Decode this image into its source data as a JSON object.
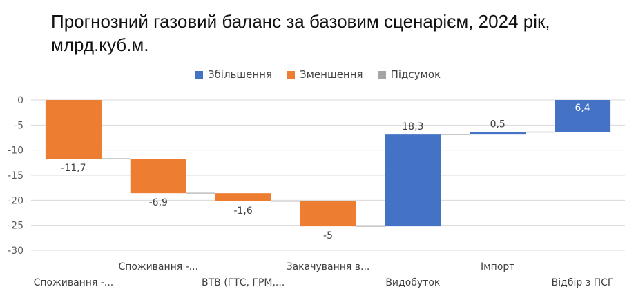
{
  "title": "Прогнозний газовий баланс за базовим сценарієм, 2024 рік, млрд.куб.м.",
  "legend": [
    {
      "label": "Збільшення",
      "color": "#4472C4"
    },
    {
      "label": "Зменшення",
      "color": "#ED7D31"
    },
    {
      "label": "Підсумок",
      "color": "#A5A5A5"
    }
  ],
  "chart_data": {
    "type": "bar",
    "subtype": "waterfall",
    "title": "Прогнозний газовий баланс за базовим сценарієм, 2024 рік, млрд.куб.м.",
    "xlabel": "",
    "ylabel": "",
    "ylim": [
      -30,
      0
    ],
    "yticks": [
      0,
      -5,
      -10,
      -15,
      -20,
      -25,
      -30
    ],
    "grid": true,
    "legend_position": "top",
    "categories": [
      "Споживання -...",
      "Споживання -...",
      "ВТВ (ГТС, ГРМ,...",
      "Закачування в...",
      "Видобуток",
      "Імпорт",
      "Відбір з ПСГ"
    ],
    "values": [
      -11.7,
      -6.9,
      -1.6,
      -5,
      18.3,
      0.5,
      6.4
    ],
    "value_labels": [
      "-11,7",
      "-6,9",
      "-1,6",
      "-5",
      "18,3",
      "0,5",
      "6,4"
    ],
    "series": [
      {
        "name": "Збільшення",
        "color": "#4472C4"
      },
      {
        "name": "Зменшення",
        "color": "#ED7D31"
      },
      {
        "name": "Підсумок",
        "color": "#A5A5A5"
      }
    ]
  }
}
